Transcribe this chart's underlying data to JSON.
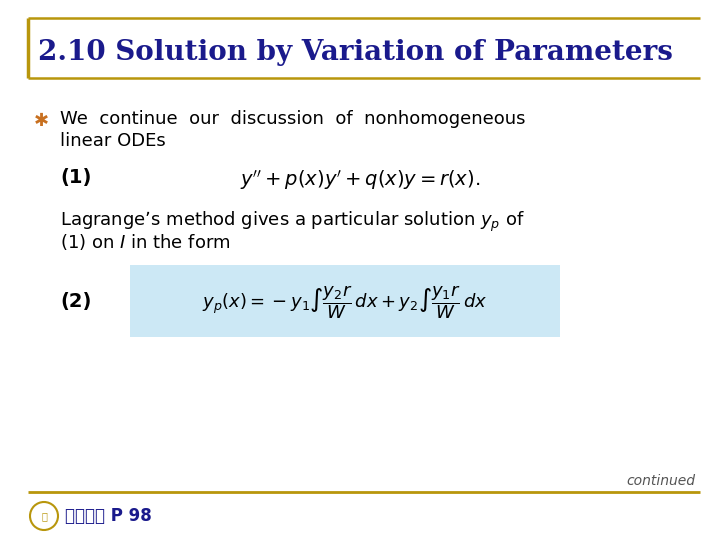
{
  "title": "2.10 Solution by Variation of Parameters",
  "title_color": "#1a1a8c",
  "title_fontsize": 20,
  "bg_color": "#ffffff",
  "border_color": "#b8960c",
  "bullet_color": "#c87020",
  "eq1_label": "(1)",
  "eq1_text": "$y'' + p(x)y' + q(x)y = r(x).$",
  "lagrange_line1": "Lagrange’s method gives a particular solution $y_p$ of",
  "lagrange_line2": "(1) on $I$ in the form",
  "eq2_label": "(2)",
  "eq2_box_color": "#cce8f5",
  "continued_text": "continued",
  "footer_text": "歐亞書局 P 98",
  "footer_color": "#1a1a8c",
  "body_fontsize": 13,
  "eq_fontsize": 14
}
